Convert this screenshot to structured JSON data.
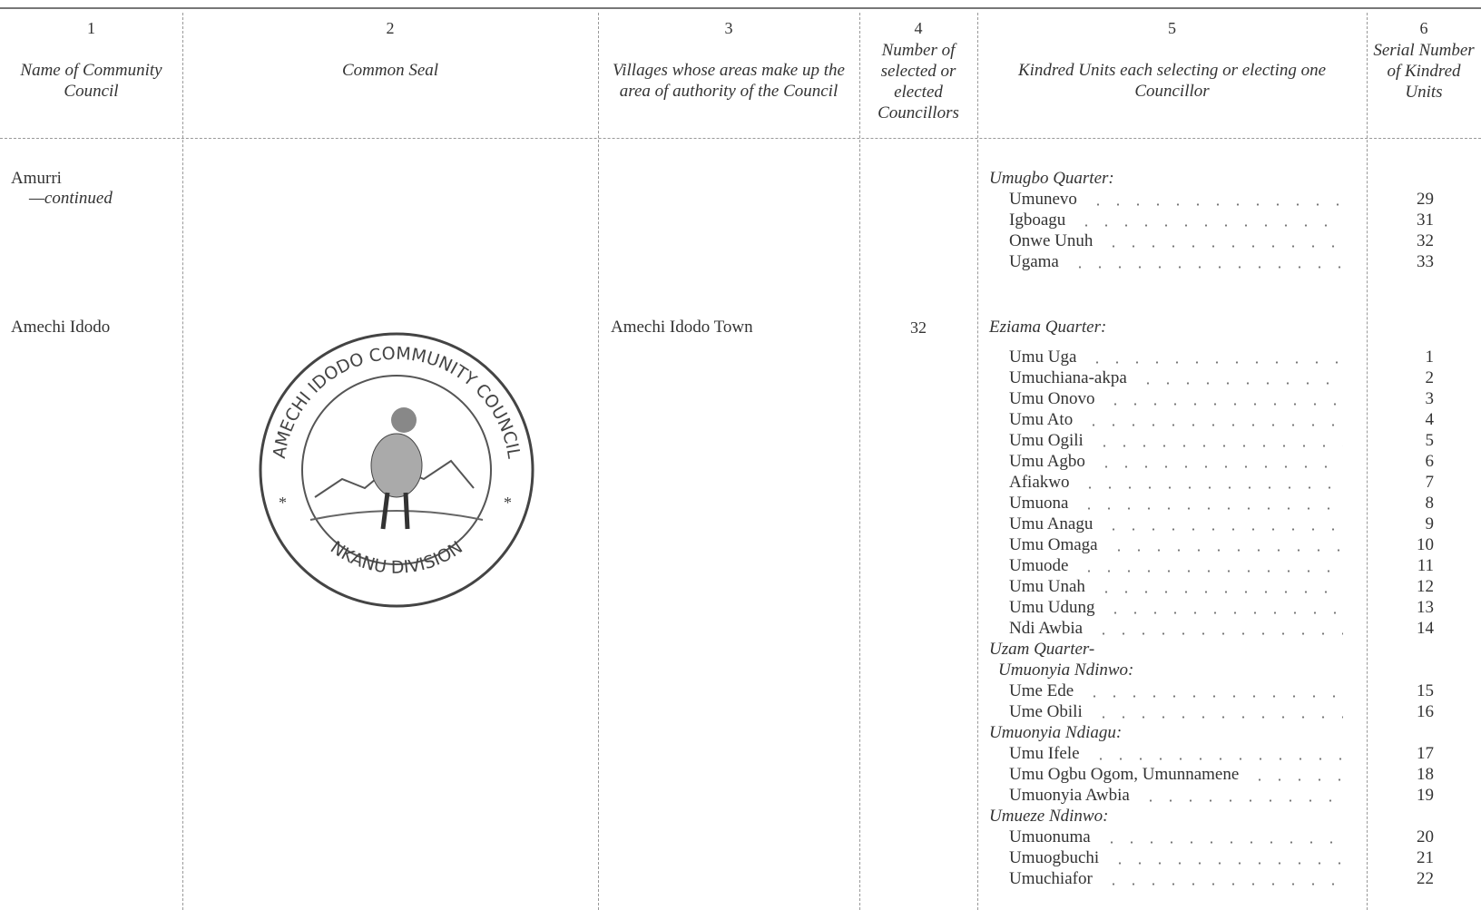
{
  "header": {
    "columns": [
      {
        "number": "1",
        "title": "Name of Community Council"
      },
      {
        "number": "2",
        "title": "Common Seal"
      },
      {
        "number": "3",
        "title": "Villages whose areas make up the area of authority of the Council"
      },
      {
        "number": "4",
        "title": "Number of selected or elected Councillors"
      },
      {
        "number": "5",
        "title": "Kindred Units each selecting or electing one Councillor"
      },
      {
        "number": "6",
        "title": "Serial Number of Kindred Units"
      }
    ]
  },
  "rows": [
    {
      "council": "Amurri",
      "note": "—continued",
      "units": [
        {
          "heading": "Umugbo Quarter:"
        },
        {
          "name": "Umunevo",
          "serial": "29"
        },
        {
          "name": "Igboagu",
          "serial": "31"
        },
        {
          "name": "Onwe Unuh",
          "serial": "32"
        },
        {
          "name": "Ugama",
          "serial": "33"
        }
      ]
    },
    {
      "council": "Amechi Idodo",
      "seal": {
        "outer": "AMECHI IDODO COMMUNITY COUNCIL",
        "lower": "NKANU DIVISION"
      },
      "villages": "Amechi Idodo Town",
      "councillors": "32",
      "units": [
        {
          "heading": "Eziama Quarter:"
        },
        {
          "name": "Umu Uga",
          "serial": "1"
        },
        {
          "name": "Umuchiana-akpa",
          "serial": "2"
        },
        {
          "name": "Umu Onovo",
          "serial": "3"
        },
        {
          "name": "Umu Ato",
          "serial": "4"
        },
        {
          "name": "Umu Ogili",
          "serial": "5"
        },
        {
          "name": "Umu Agbo",
          "serial": "6"
        },
        {
          "name": "Afiakwo",
          "serial": "7"
        },
        {
          "name": "Umuona",
          "serial": "8"
        },
        {
          "name": "Umu Anagu",
          "serial": "9"
        },
        {
          "name": "Umu Omaga",
          "serial": "10"
        },
        {
          "name": "Umuode",
          "serial": "11"
        },
        {
          "name": "Umu Unah",
          "serial": "12"
        },
        {
          "name": "Umu Udung",
          "serial": "13"
        },
        {
          "name": "Ndi Awbia",
          "serial": "14"
        },
        {
          "heading": "Uzam Quarter-"
        },
        {
          "heading": "Umuonyia Ndinwo:"
        },
        {
          "name": "Ume Ede",
          "serial": "15"
        },
        {
          "name": "Ume Obili",
          "serial": "16"
        },
        {
          "heading": "Umuonyia Ndiagu:"
        },
        {
          "name": "Umu Ifele",
          "serial": "17"
        },
        {
          "name": "Umu Ogbu Ogom, Umunnamene",
          "serial": "18"
        },
        {
          "name": "Umuonyia Awbia",
          "serial": "19"
        },
        {
          "heading": "Umueze Ndinwo:"
        },
        {
          "name": "Umuonuma",
          "serial": "20"
        },
        {
          "name": "Umuogbuchi",
          "serial": "21"
        },
        {
          "name": "Umuchiafor",
          "serial": "22"
        }
      ]
    }
  ]
}
